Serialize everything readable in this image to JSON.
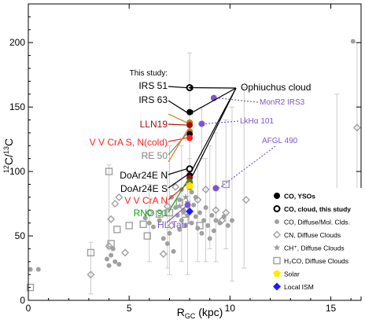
{
  "chart_data": {
    "type": "scatter",
    "xlabel_main": "R",
    "xlabel_sub": "GC",
    "xlabel_unit": " (kpc)",
    "ylabel_pre": "12",
    "ylabel_c1": "C/",
    "ylabel_mid": "13",
    "ylabel_c2": "C",
    "xlim": [
      0,
      16.5
    ],
    "ylim": [
      0,
      230
    ],
    "xticks": [
      0,
      5,
      10,
      15
    ],
    "yticks": [
      0,
      50,
      100,
      150,
      200
    ],
    "xtick_labels": [
      "0",
      "5",
      "10",
      "15"
    ],
    "ytick_labels": [
      "0",
      "50",
      "100",
      "150",
      "200"
    ],
    "colors": {
      "yso": "#000000",
      "cn": "#a0a0a0",
      "co_diffuse": "#a0a0a0",
      "h2co": "#a0a0a0",
      "solar": "#ffee00",
      "local_ism": "#1a1aff",
      "purple": "#7d55d1",
      "lln19": "#a01010",
      "vvcra": "#ff2020",
      "rno91": "#10a010",
      "re50": "#808080",
      "orange": "#d4781a"
    },
    "series": [
      {
        "name": "CO, YSOs",
        "marker": "filled-circle",
        "points": [
          {
            "x": 8.0,
            "y": 146,
            "color": "#000000"
          },
          {
            "x": 8.0,
            "y": 138,
            "color": "#d4781a"
          },
          {
            "x": 8.0,
            "y": 136,
            "color": "#a01010"
          },
          {
            "x": 8.0,
            "y": 131,
            "color": "#d4781a"
          },
          {
            "x": 8.0,
            "y": 129,
            "color": "#000000"
          },
          {
            "x": 8.0,
            "y": 126,
            "color": "#ff2020"
          },
          {
            "x": 8.0,
            "y": 97,
            "color": "#000000"
          },
          {
            "x": 8.0,
            "y": 95,
            "color": "#a01010"
          },
          {
            "x": 8.0,
            "y": 92,
            "color": "#10a010"
          },
          {
            "x": 8.0,
            "y": 90,
            "color": "#ff2020"
          },
          {
            "x": 8.0,
            "y": 88,
            "color": "#d4781a"
          },
          {
            "x": 8.6,
            "y": 137,
            "color": "#7d55d1"
          },
          {
            "x": 9.2,
            "y": 157,
            "color": "#7d55d1"
          },
          {
            "x": 9.3,
            "y": 87,
            "color": "#7d55d1"
          },
          {
            "x": 7.9,
            "y": 74,
            "color": "#7d55d1"
          }
        ]
      },
      {
        "name": "CO, cloud, this study",
        "marker": "open-circle",
        "points": [
          {
            "x": 8.0,
            "y": 165
          },
          {
            "x": 8.0,
            "y": 102
          }
        ]
      },
      {
        "name": "CO, Diffuse/Mol. Clds.",
        "marker": "gray-circle",
        "points": [
          {
            "x": 0.1,
            "y": 24
          },
          {
            "x": 0.5,
            "y": 24
          },
          {
            "x": 3.9,
            "y": 32
          },
          {
            "x": 4.0,
            "y": 27
          },
          {
            "x": 4.1,
            "y": 35
          },
          {
            "x": 4.3,
            "y": 30
          },
          {
            "x": 4.5,
            "y": 28
          },
          {
            "x": 4.2,
            "y": 40
          },
          {
            "x": 5.8,
            "y": 64
          },
          {
            "x": 6.2,
            "y": 57
          },
          {
            "x": 6.5,
            "y": 62
          },
          {
            "x": 6.7,
            "y": 48
          },
          {
            "x": 6.9,
            "y": 44
          },
          {
            "x": 7.0,
            "y": 52
          },
          {
            "x": 7.1,
            "y": 80
          },
          {
            "x": 7.2,
            "y": 38
          },
          {
            "x": 7.3,
            "y": 72
          },
          {
            "x": 7.4,
            "y": 66
          },
          {
            "x": 7.5,
            "y": 55
          },
          {
            "x": 7.5,
            "y": 78
          },
          {
            "x": 7.6,
            "y": 62
          },
          {
            "x": 7.7,
            "y": 70
          },
          {
            "x": 7.8,
            "y": 58
          },
          {
            "x": 7.9,
            "y": 66
          },
          {
            "x": 8.1,
            "y": 60
          },
          {
            "x": 8.2,
            "y": 74
          },
          {
            "x": 8.3,
            "y": 65
          },
          {
            "x": 8.4,
            "y": 56
          },
          {
            "x": 8.5,
            "y": 68
          },
          {
            "x": 8.6,
            "y": 52
          },
          {
            "x": 8.7,
            "y": 62
          },
          {
            "x": 8.8,
            "y": 72
          },
          {
            "x": 8.9,
            "y": 58
          },
          {
            "x": 9.0,
            "y": 48
          },
          {
            "x": 9.1,
            "y": 66
          },
          {
            "x": 9.2,
            "y": 54
          },
          {
            "x": 9.3,
            "y": 62
          },
          {
            "x": 9.5,
            "y": 60
          },
          {
            "x": 9.7,
            "y": 65
          },
          {
            "x": 9.9,
            "y": 58
          },
          {
            "x": 10.1,
            "y": 62
          },
          {
            "x": 6.0,
            "y": 60
          },
          {
            "x": 16.1,
            "y": 201
          },
          {
            "x": 7.6,
            "y": 86
          },
          {
            "x": 8.1,
            "y": 84
          },
          {
            "x": 8.3,
            "y": 80
          }
        ]
      },
      {
        "name": "CN, Diffuse Clouds",
        "marker": "open-diamond",
        "points": [
          {
            "x": 3.1,
            "y": 20
          },
          {
            "x": 4.1,
            "y": 63
          },
          {
            "x": 4.3,
            "y": 75
          },
          {
            "x": 4.5,
            "y": 80
          },
          {
            "x": 4.0,
            "y": 42
          },
          {
            "x": 4.8,
            "y": 37
          },
          {
            "x": 6.0,
            "y": 68
          },
          {
            "x": 6.7,
            "y": 36
          },
          {
            "x": 6.9,
            "y": 73
          },
          {
            "x": 7.3,
            "y": 88
          },
          {
            "x": 8.4,
            "y": 78
          },
          {
            "x": 8.8,
            "y": 86
          },
          {
            "x": 9.3,
            "y": 70
          },
          {
            "x": 9.6,
            "y": 62
          },
          {
            "x": 9.8,
            "y": 68
          },
          {
            "x": 10.8,
            "y": 78
          },
          {
            "x": 16.3,
            "y": 134
          },
          {
            "x": 7.1,
            "y": 58
          }
        ]
      },
      {
        "name": "CH⁺, Diffuse Clouds",
        "marker": "star",
        "points": [
          {
            "x": 7.5,
            "y": 73
          },
          {
            "x": 7.7,
            "y": 68
          },
          {
            "x": 7.8,
            "y": 80
          },
          {
            "x": 7.9,
            "y": 76
          }
        ]
      },
      {
        "name": "H₂CO, Diffuse Clouds",
        "marker": "open-square",
        "points": [
          {
            "x": 0.1,
            "y": 10
          },
          {
            "x": 3.1,
            "y": 37
          },
          {
            "x": 4.0,
            "y": 100
          },
          {
            "x": 4.1,
            "y": 44
          },
          {
            "x": 4.4,
            "y": 55
          },
          {
            "x": 5.0,
            "y": 58
          },
          {
            "x": 5.7,
            "y": 59
          },
          {
            "x": 6.5,
            "y": 67
          },
          {
            "x": 7.0,
            "y": 68
          },
          {
            "x": 7.5,
            "y": 76
          },
          {
            "x": 5.9,
            "y": 50
          },
          {
            "x": 9.8,
            "y": 90
          },
          {
            "x": 7.8,
            "y": 62
          },
          {
            "x": 8.5,
            "y": 58
          }
        ]
      },
      {
        "name": "Solar",
        "marker": "yellow-pentagon",
        "points": [
          {
            "x": 8.0,
            "y": 89
          }
        ]
      },
      {
        "name": "Local ISM",
        "marker": "blue-diamond",
        "points": [
          {
            "x": 8.0,
            "y": 69
          }
        ]
      }
    ],
    "annotations": {
      "this_study": "This study:",
      "irs51": "IRS 51",
      "irs63": "IRS 63",
      "lln19": "LLN19",
      "vvcra_s": "V V CrA S, N(cold)",
      "re50": "RE 50",
      "doar24en": "DoAr24E N",
      "doar24es": "DoAr24E S",
      "vvcra_n": "V V CrA N",
      "rno91": "RNO 91",
      "hltau": "HL Tau",
      "ophiuchus": "Ophiuchus cloud",
      "monr2": "MonR2 IRS3",
      "lkha": "LkHα 101",
      "afgl": "AFGL 490"
    },
    "legend": {
      "placement": "lower-right",
      "items": [
        {
          "label": "CO, YSOs",
          "marker": "filled-circle",
          "bold": true
        },
        {
          "label": "CO, cloud, this study",
          "marker": "open-circle",
          "bold": true
        },
        {
          "label": "CO, Diffuse/Mol. Clds.",
          "marker": "gray-circle",
          "bold": false
        },
        {
          "label": "CN, Diffuse Clouds",
          "marker": "open-diamond",
          "bold": false
        },
        {
          "label": "CH⁺, Diffuse Clouds",
          "marker": "star",
          "bold": false
        },
        {
          "label": "H₂CO, Diffuse Clouds",
          "marker": "open-square",
          "bold": false
        },
        {
          "label": "Solar",
          "marker": "yellow-pentagon",
          "bold": false
        },
        {
          "label": "Local ISM",
          "marker": "blue-diamond",
          "bold": false
        }
      ]
    }
  }
}
